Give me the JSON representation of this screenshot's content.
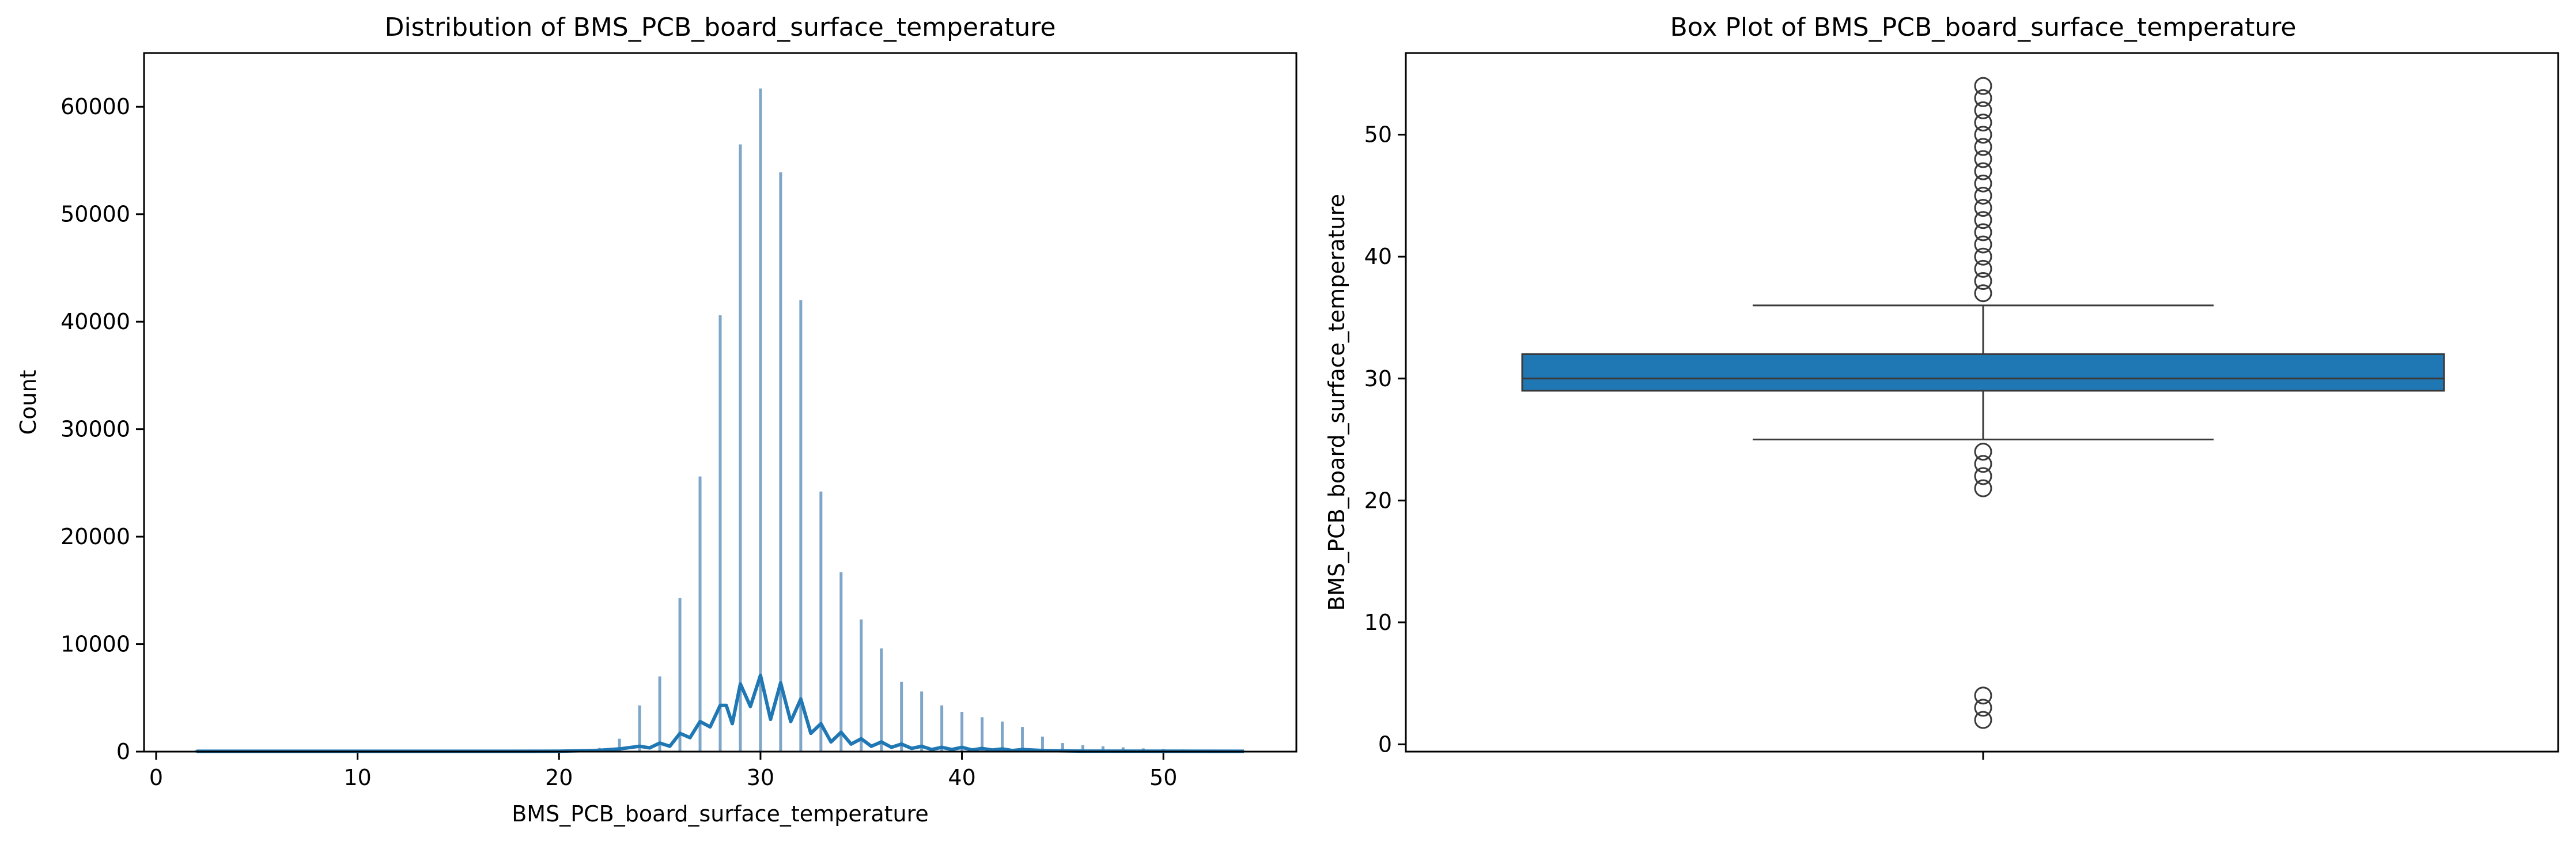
{
  "chart_data": [
    {
      "type": "histogram",
      "title": "Distribution of BMS_PCB_board_surface_temperature",
      "xlabel": "BMS_PCB_board_surface_temperature",
      "ylabel": "Count",
      "xlim": [
        -0.6,
        56.6
      ],
      "ylim": [
        0,
        65000
      ],
      "xticks": [
        0,
        10,
        20,
        30,
        40,
        50
      ],
      "yticks": [
        0,
        10000,
        20000,
        30000,
        40000,
        50000,
        60000
      ],
      "colors": {
        "bars": "#7ea6c8",
        "kde": "#1f77b4"
      },
      "bins": [
        {
          "x": 2,
          "count": 150
        },
        {
          "x": 3,
          "count": 150
        },
        {
          "x": 4,
          "count": 150
        },
        {
          "x": 21,
          "count": 200
        },
        {
          "x": 22,
          "count": 350
        },
        {
          "x": 23,
          "count": 1200
        },
        {
          "x": 24,
          "count": 4300
        },
        {
          "x": 25,
          "count": 7000
        },
        {
          "x": 26,
          "count": 14300
        },
        {
          "x": 27,
          "count": 25600
        },
        {
          "x": 28,
          "count": 40600
        },
        {
          "x": 29,
          "count": 56500
        },
        {
          "x": 30,
          "count": 61700
        },
        {
          "x": 31,
          "count": 53900
        },
        {
          "x": 32,
          "count": 42000
        },
        {
          "x": 33,
          "count": 24200
        },
        {
          "x": 34,
          "count": 16700
        },
        {
          "x": 35,
          "count": 12300
        },
        {
          "x": 36,
          "count": 9600
        },
        {
          "x": 37,
          "count": 6500
        },
        {
          "x": 38,
          "count": 5600
        },
        {
          "x": 39,
          "count": 4300
        },
        {
          "x": 40,
          "count": 3700
        },
        {
          "x": 41,
          "count": 3200
        },
        {
          "x": 42,
          "count": 2800
        },
        {
          "x": 43,
          "count": 2300
        },
        {
          "x": 44,
          "count": 1400
        },
        {
          "x": 45,
          "count": 800
        },
        {
          "x": 46,
          "count": 600
        },
        {
          "x": 47,
          "count": 500
        },
        {
          "x": 48,
          "count": 400
        },
        {
          "x": 49,
          "count": 300
        },
        {
          "x": 50,
          "count": 250
        },
        {
          "x": 51,
          "count": 200
        },
        {
          "x": 52,
          "count": 150
        },
        {
          "x": 53,
          "count": 120
        },
        {
          "x": 54,
          "count": 100
        }
      ],
      "kde": {
        "x": [
          2,
          10,
          20,
          22,
          23,
          24,
          24.5,
          25,
          25.5,
          26,
          26.5,
          27,
          27.5,
          28,
          28.3,
          28.6,
          29,
          29.5,
          30,
          30.5,
          31,
          31.5,
          32,
          32.5,
          33,
          33.5,
          34,
          34.5,
          35,
          35.5,
          36,
          36.5,
          37,
          37.5,
          38,
          38.5,
          39,
          39.5,
          40,
          40.5,
          41,
          41.5,
          42,
          42.5,
          43,
          44,
          46,
          50,
          54
        ],
        "y": [
          30,
          30,
          40,
          120,
          250,
          500,
          350,
          800,
          500,
          1700,
          1300,
          2800,
          2300,
          4300,
          4300,
          2600,
          6300,
          4200,
          7100,
          3000,
          6400,
          2800,
          4900,
          1700,
          2600,
          900,
          1800,
          700,
          1200,
          500,
          900,
          400,
          700,
          300,
          500,
          200,
          400,
          200,
          400,
          150,
          300,
          150,
          250,
          100,
          200,
          100,
          50,
          40,
          30
        ]
      }
    },
    {
      "type": "box",
      "title": "Box Plot of BMS_PCB_board_surface_temperature",
      "ylabel": "BMS_PCB_board_surface_temperature",
      "ylim": [
        -0.6,
        56.7
      ],
      "yticks": [
        0,
        10,
        20,
        30,
        40,
        50
      ],
      "colors": {
        "box": "#1f77b4",
        "line": "#3a3a3a"
      },
      "box": {
        "whisker_low": 25,
        "q1": 29,
        "median": 30,
        "q3": 32,
        "whisker_high": 36
      },
      "outliers": [
        2,
        3,
        4,
        21,
        22,
        23,
        24,
        37,
        38,
        39,
        40,
        41,
        42,
        43,
        44,
        45,
        46,
        47,
        48,
        49,
        50,
        51,
        52,
        53,
        54
      ]
    }
  ]
}
